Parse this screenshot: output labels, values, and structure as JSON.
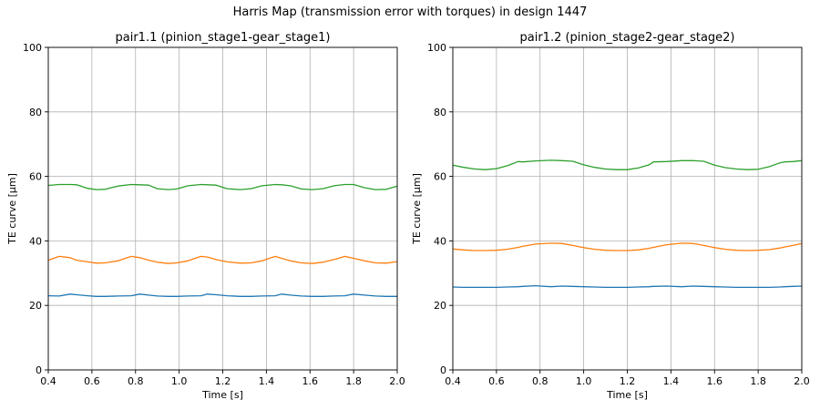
{
  "figure": {
    "suptitle": "Harris Map (transmission error with torques) in design 1447"
  },
  "chart_data": [
    {
      "type": "line",
      "title": "pair1.1 (pinion_stage1-gear_stage1)",
      "xlabel": "Time [s]",
      "ylabel": "TE curve [µm]",
      "xlim": [
        0.4,
        2.0
      ],
      "ylim": [
        0,
        100
      ],
      "xticks": [
        "0.4",
        "0.6",
        "0.8",
        "1.0",
        "1.2",
        "1.4",
        "1.6",
        "1.8",
        "2.0"
      ],
      "yticks": [
        "0",
        "20",
        "40",
        "60",
        "80",
        "100"
      ],
      "grid": true,
      "legend": null,
      "x": [
        0.4,
        0.45,
        0.5,
        0.53,
        0.58,
        0.62,
        0.66,
        0.72,
        0.78,
        0.82,
        0.86,
        0.9,
        0.95,
        0.99,
        1.04,
        1.1,
        1.13,
        1.17,
        1.22,
        1.28,
        1.33,
        1.38,
        1.44,
        1.47,
        1.51,
        1.56,
        1.61,
        1.66,
        1.71,
        1.76,
        1.8,
        1.85,
        1.9,
        1.95,
        2.0
      ],
      "series": [
        {
          "name": "series-blue",
          "color": "#1f77b4",
          "values": [
            23.0,
            22.9,
            23.5,
            23.3,
            23.0,
            22.8,
            22.8,
            22.9,
            23.0,
            23.5,
            23.2,
            22.9,
            22.8,
            22.8,
            22.9,
            23.0,
            23.5,
            23.3,
            23.0,
            22.8,
            22.8,
            22.9,
            23.0,
            23.5,
            23.2,
            22.9,
            22.8,
            22.8,
            22.9,
            23.0,
            23.5,
            23.2,
            22.9,
            22.8,
            22.8
          ]
        },
        {
          "name": "series-orange",
          "color": "#ff7f0e",
          "values": [
            34.0,
            35.2,
            34.8,
            34.0,
            33.5,
            33.1,
            33.2,
            33.8,
            35.2,
            34.8,
            34.0,
            33.4,
            33.0,
            33.2,
            33.8,
            35.2,
            35.0,
            34.2,
            33.5,
            33.1,
            33.2,
            33.8,
            35.2,
            34.6,
            33.8,
            33.2,
            33.0,
            33.4,
            34.2,
            35.2,
            34.6,
            33.8,
            33.2,
            33.1,
            33.6
          ]
        },
        {
          "name": "series-green",
          "color": "#2ca02c",
          "values": [
            57.2,
            57.5,
            57.5,
            57.4,
            56.3,
            55.9,
            56.0,
            57.0,
            57.5,
            57.4,
            57.3,
            56.2,
            55.9,
            56.1,
            57.1,
            57.5,
            57.4,
            57.3,
            56.2,
            55.9,
            56.2,
            57.1,
            57.5,
            57.4,
            57.1,
            56.1,
            55.9,
            56.2,
            57.1,
            57.5,
            57.5,
            56.5,
            55.9,
            56.0,
            57.0
          ]
        }
      ]
    },
    {
      "type": "line",
      "title": "pair1.2 (pinion_stage2-gear_stage2)",
      "xlabel": "Time [s]",
      "ylabel": "TE curve [µm]",
      "xlim": [
        0.4,
        2.0
      ],
      "ylim": [
        0,
        100
      ],
      "xticks": [
        "0.4",
        "0.6",
        "0.8",
        "1.0",
        "1.2",
        "1.4",
        "1.6",
        "1.8",
        "2.0"
      ],
      "yticks": [
        "0",
        "20",
        "40",
        "60",
        "80",
        "100"
      ],
      "grid": true,
      "legend": null,
      "x": [
        0.4,
        0.45,
        0.5,
        0.55,
        0.6,
        0.65,
        0.7,
        0.72,
        0.78,
        0.85,
        0.9,
        0.95,
        1.0,
        1.05,
        1.1,
        1.15,
        1.2,
        1.25,
        1.3,
        1.32,
        1.38,
        1.45,
        1.5,
        1.55,
        1.6,
        1.65,
        1.7,
        1.75,
        1.8,
        1.85,
        1.9,
        1.92,
        1.96,
        2.0
      ],
      "series": [
        {
          "name": "series-blue",
          "color": "#1f77b4",
          "values": [
            25.7,
            25.6,
            25.6,
            25.6,
            25.6,
            25.7,
            25.8,
            25.9,
            26.1,
            25.8,
            26.0,
            25.9,
            25.8,
            25.7,
            25.6,
            25.6,
            25.6,
            25.7,
            25.8,
            25.9,
            26.0,
            25.8,
            26.0,
            25.9,
            25.8,
            25.7,
            25.6,
            25.6,
            25.6,
            25.6,
            25.7,
            25.8,
            25.9,
            26.0
          ]
        },
        {
          "name": "series-orange",
          "color": "#ff7f0e",
          "values": [
            37.5,
            37.2,
            37.0,
            37.0,
            37.1,
            37.4,
            38.0,
            38.3,
            39.0,
            39.3,
            39.2,
            38.6,
            37.9,
            37.4,
            37.1,
            37.0,
            37.0,
            37.2,
            37.7,
            38.0,
            38.8,
            39.3,
            39.2,
            38.6,
            37.9,
            37.4,
            37.1,
            37.0,
            37.1,
            37.3,
            37.8,
            38.1,
            38.6,
            39.2
          ]
        },
        {
          "name": "series-green",
          "color": "#2ca02c",
          "values": [
            63.5,
            62.8,
            62.3,
            62.1,
            62.4,
            63.3,
            64.6,
            64.5,
            64.8,
            65.0,
            64.9,
            64.7,
            63.6,
            62.8,
            62.3,
            62.1,
            62.1,
            62.6,
            63.6,
            64.5,
            64.6,
            64.9,
            64.9,
            64.7,
            63.5,
            62.7,
            62.3,
            62.1,
            62.2,
            63.0,
            64.2,
            64.5,
            64.6,
            64.9
          ]
        }
      ]
    }
  ]
}
